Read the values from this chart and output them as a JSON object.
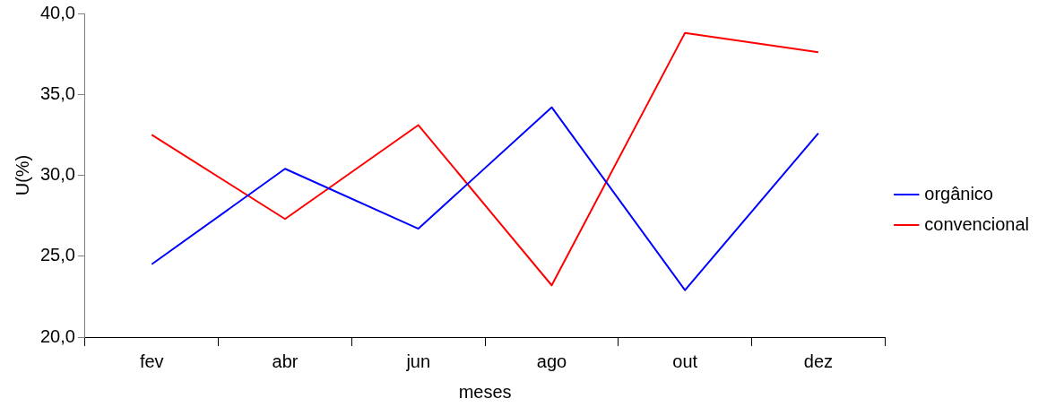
{
  "chart_data": {
    "type": "line",
    "xlabel": "meses",
    "ylabel": "U(%)",
    "categories": [
      "fev",
      "abr",
      "jun",
      "ago",
      "out",
      "dez"
    ],
    "series": [
      {
        "name": "orgânico",
        "color": "#0000ff",
        "values": [
          24.5,
          30.4,
          26.7,
          34.2,
          22.9,
          32.6
        ]
      },
      {
        "name": "convencional",
        "color": "#ff0000",
        "values": [
          32.5,
          27.3,
          33.1,
          23.2,
          38.8,
          37.6
        ]
      }
    ],
    "ylim": [
      20,
      40
    ],
    "yticks": [
      {
        "value": 20,
        "label": "20,0"
      },
      {
        "value": 25,
        "label": "25,0"
      },
      {
        "value": 30,
        "label": "30,0"
      },
      {
        "value": 35,
        "label": "35,0"
      },
      {
        "value": 40,
        "label": "40,0"
      }
    ],
    "grid": false,
    "legend": "right",
    "marker": "none"
  }
}
